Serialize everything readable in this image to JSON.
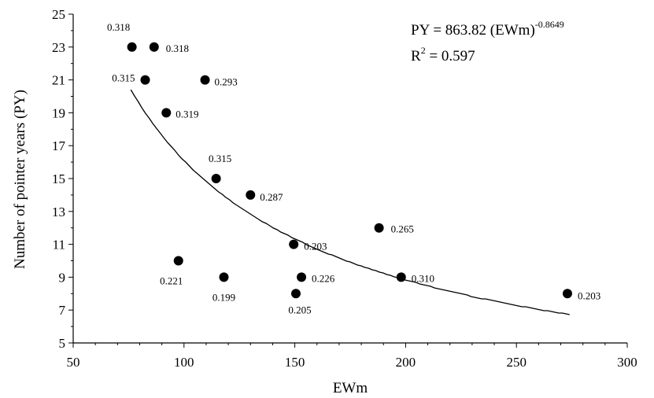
{
  "chart_data": {
    "type": "scatter",
    "title": "",
    "xlabel": "EWm",
    "ylabel": "Number of pointer years (PY)",
    "xlim": [
      50,
      300
    ],
    "ylim": [
      5,
      25
    ],
    "xticks": [
      50,
      100,
      150,
      200,
      250,
      300
    ],
    "yticks": [
      5,
      7,
      9,
      11,
      13,
      15,
      17,
      19,
      21,
      23,
      25
    ],
    "grid": false,
    "legend": "none",
    "points": [
      {
        "x": 76.5,
        "y": 23,
        "label": "0.318"
      },
      {
        "x": 86.5,
        "y": 23,
        "label": "0.318"
      },
      {
        "x": 82.5,
        "y": 21,
        "label": "0.315"
      },
      {
        "x": 109.5,
        "y": 21,
        "label": "0.293"
      },
      {
        "x": 92,
        "y": 19,
        "label": "0.319"
      },
      {
        "x": 114.5,
        "y": 15,
        "label": "0.315"
      },
      {
        "x": 130,
        "y": 14,
        "label": "0.287"
      },
      {
        "x": 188,
        "y": 12,
        "label": "0.265"
      },
      {
        "x": 149.5,
        "y": 11,
        "label": "0.203"
      },
      {
        "x": 97.5,
        "y": 10,
        "label": "0.221"
      },
      {
        "x": 118,
        "y": 9,
        "label": "0.199"
      },
      {
        "x": 153,
        "y": 9,
        "label": "0.226"
      },
      {
        "x": 198,
        "y": 9,
        "label": "0.310"
      },
      {
        "x": 150.5,
        "y": 8,
        "label": "0.205"
      },
      {
        "x": 273,
        "y": 8,
        "label": "0.203"
      }
    ],
    "fit": {
      "type": "power",
      "a": 863.82,
      "b": -0.8649,
      "x_range": [
        76,
        274
      ],
      "equation_prefix": "PY  = 863.82 (EWm)",
      "equation_exponent": "-0.8649",
      "r2_label": "R",
      "r2_sup": "2",
      "r2_value": " = 0.597"
    }
  }
}
